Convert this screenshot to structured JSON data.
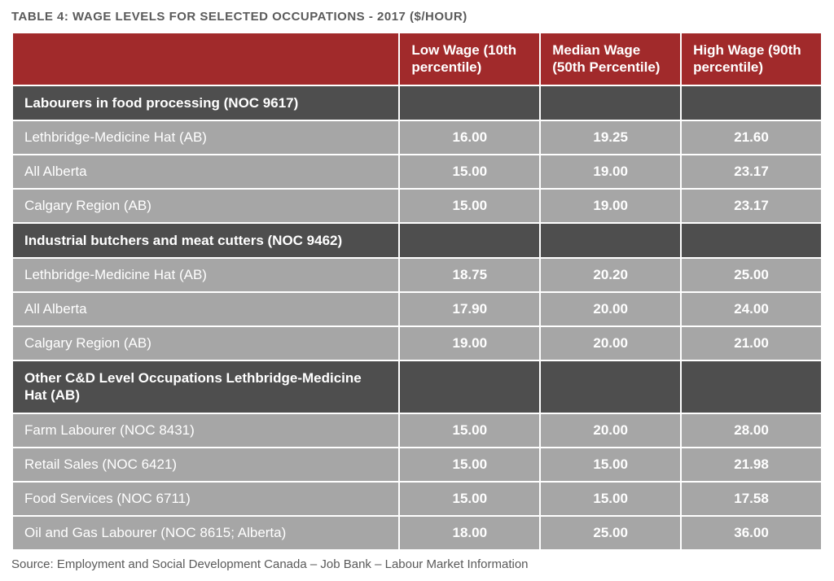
{
  "title": "TABLE 4: WAGE LEVELS FOR SELECTED OCCUPATIONS - 2017 ($/HOUR)",
  "source": "Source: Employment and Social Development Canada – Job Bank – Labour Market Information",
  "colors": {
    "header_bg": "#a12a2b",
    "section_bg": "#4e4e4e",
    "data_bg": "#a6a6a6",
    "text_on_dark": "#ffffff",
    "page_bg": "#ffffff",
    "title_color": "#5a5a5a",
    "source_color": "#5a5a5a"
  },
  "columns": [
    "",
    "Low Wage (10th percentile)",
    "Median Wage (50th Percentile)",
    "High Wage (90th percentile)"
  ],
  "column_widths_pct": [
    48,
    17.33,
    17.33,
    17.33
  ],
  "fonts": {
    "title_size_pt": 11,
    "header_size_pt": 13,
    "cell_size_pt": 13,
    "source_size_pt": 11,
    "header_weight": 700,
    "section_weight": 700,
    "value_weight": 700,
    "label_weight": 400
  },
  "sections": [
    {
      "label": "Labourers in food processing (NOC 9617)",
      "rows": [
        {
          "label": "Lethbridge-Medicine Hat (AB)",
          "low": "16.00",
          "median": "19.25",
          "high": "21.60"
        },
        {
          "label": "All Alberta",
          "low": "15.00",
          "median": "19.00",
          "high": "23.17"
        },
        {
          "label": "Calgary Region (AB)",
          "low": "15.00",
          "median": "19.00",
          "high": "23.17"
        }
      ]
    },
    {
      "label": "Industrial butchers and meat cutters (NOC 9462)",
      "rows": [
        {
          "label": "Lethbridge-Medicine Hat (AB)",
          "low": "18.75",
          "median": "20.20",
          "high": "25.00"
        },
        {
          "label": "All Alberta",
          "low": "17.90",
          "median": "20.00",
          "high": "24.00"
        },
        {
          "label": "Calgary Region (AB)",
          "low": "19.00",
          "median": "20.00",
          "high": "21.00"
        }
      ]
    },
    {
      "label": "Other C&D Level Occupations Lethbridge-Medicine Hat (AB)",
      "rows": [
        {
          "label": "Farm Labourer (NOC 8431)",
          "low": "15.00",
          "median": "20.00",
          "high": "28.00"
        },
        {
          "label": "Retail Sales (NOC 6421)",
          "low": "15.00",
          "median": "15.00",
          "high": "21.98"
        },
        {
          "label": "Food Services (NOC 6711)",
          "low": "15.00",
          "median": "15.00",
          "high": "17.58"
        },
        {
          "label": "Oil and Gas Labourer (NOC 8615; Alberta)",
          "low": "18.00",
          "median": "25.00",
          "high": "36.00"
        }
      ]
    }
  ]
}
